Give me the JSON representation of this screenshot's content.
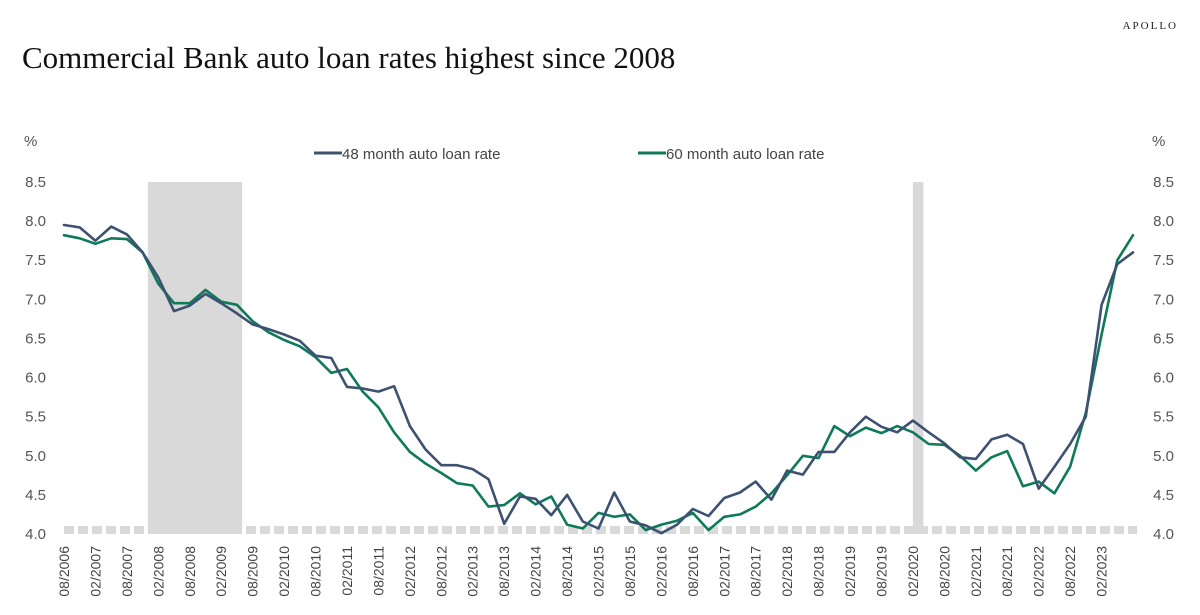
{
  "header": {
    "brand": "APOLLO",
    "title": "Commercial Bank auto loan rates highest since 2008"
  },
  "colors": {
    "series48": "#3d5170",
    "series60": "#0e7a5a",
    "recession": "#d9d9d9"
  },
  "chart_data": {
    "type": "line",
    "title": "Commercial Bank auto loan rates highest since 2008",
    "unit_label": "%",
    "ylim": [
      4.0,
      8.5
    ],
    "yticks": [
      "8.5",
      "8.0",
      "7.5",
      "7.0",
      "6.5",
      "6.0",
      "5.5",
      "5.0",
      "4.5",
      "4.0"
    ],
    "legend_position": "top-center",
    "x_labels": [
      "08/2006",
      "02/2007",
      "08/2007",
      "02/2008",
      "08/2008",
      "02/2009",
      "08/2009",
      "02/2010",
      "08/2010",
      "02/2011",
      "08/2011",
      "02/2012",
      "08/2012",
      "02/2013",
      "08/2013",
      "02/2014",
      "08/2014",
      "02/2015",
      "08/2015",
      "02/2016",
      "08/2016",
      "02/2017",
      "08/2017",
      "02/2018",
      "08/2018",
      "02/2019",
      "08/2019",
      "02/2020",
      "08/2020",
      "02/2021",
      "08/2021",
      "02/2022",
      "08/2022",
      "02/2023"
    ],
    "recessions": [
      [
        "12/2007",
        "06/2009"
      ],
      [
        "02/2020",
        "04/2020"
      ]
    ],
    "series": [
      {
        "name": "48 month auto loan rate",
        "color": "#3d5170",
        "values": [
          7.95,
          7.92,
          7.75,
          7.93,
          7.83,
          7.6,
          7.28,
          6.85,
          6.92,
          7.07,
          6.95,
          6.82,
          6.68,
          6.62,
          6.55,
          6.47,
          6.28,
          6.25,
          5.88,
          5.86,
          5.82,
          5.89,
          5.38,
          5.08,
          4.88,
          4.88,
          4.83,
          4.7,
          4.13,
          4.48,
          4.45,
          4.24,
          4.5,
          4.16,
          4.07,
          4.53,
          4.16,
          4.11,
          4.01,
          4.12,
          4.32,
          4.23,
          4.46,
          4.53,
          4.67,
          4.44,
          4.81,
          4.76,
          5.05,
          5.05,
          5.3,
          5.5,
          5.37,
          5.3,
          5.45,
          5.3,
          5.16,
          4.98,
          4.96,
          5.21,
          5.27,
          5.15,
          4.58,
          4.86,
          5.15,
          5.5,
          6.93,
          7.45,
          7.6
        ]
      },
      {
        "name": "60 month auto loan rate",
        "color": "#0e7a5a",
        "values": [
          7.82,
          7.78,
          7.71,
          7.78,
          7.77,
          7.6,
          7.2,
          6.95,
          6.95,
          7.12,
          6.97,
          6.93,
          6.72,
          6.58,
          6.48,
          6.4,
          6.26,
          6.06,
          6.11,
          5.82,
          5.62,
          5.3,
          5.05,
          4.9,
          4.78,
          4.65,
          4.62,
          4.35,
          4.37,
          4.52,
          4.38,
          4.48,
          4.12,
          4.07,
          4.27,
          4.22,
          4.25,
          4.05,
          4.12,
          4.17,
          4.27,
          4.05,
          4.22,
          4.25,
          4.35,
          4.52,
          4.75,
          5.0,
          4.97,
          5.38,
          5.25,
          5.36,
          5.29,
          5.38,
          5.3,
          5.15,
          5.14,
          5.0,
          4.81,
          4.98,
          5.06,
          4.61,
          4.67,
          4.52,
          4.86,
          5.55,
          6.55,
          7.5,
          7.82
        ]
      }
    ]
  }
}
